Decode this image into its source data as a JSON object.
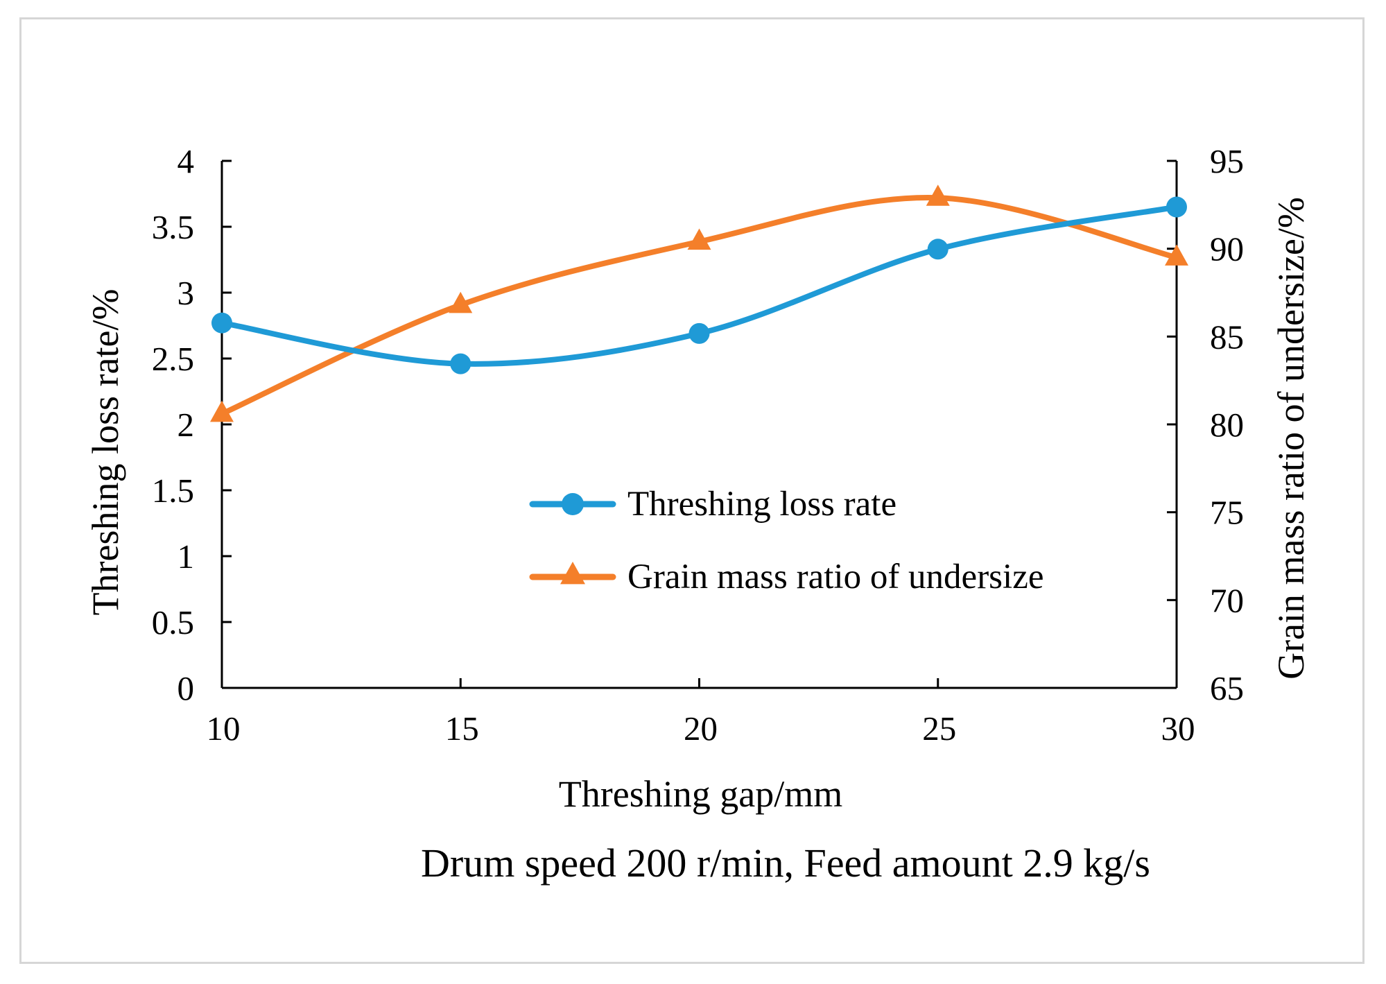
{
  "chart_data": {
    "type": "line",
    "x": [
      10,
      15,
      20,
      25,
      30
    ],
    "xticks": [
      "10",
      "15",
      "20",
      "25",
      "30"
    ],
    "xlim": [
      10,
      30
    ],
    "xlabel": "Threshing gap/mm",
    "ylabel_left": "Threshing loss rate/%",
    "ylabel_right": "Grain mass ratio of undersize/%",
    "ylim_left": [
      0,
      4
    ],
    "ylim_right": [
      65,
      95
    ],
    "yticks_left": [
      "0",
      "0.5",
      "1",
      "1.5",
      "2",
      "2.5",
      "3",
      "3.5",
      "4"
    ],
    "yticks_right": [
      "65",
      "70",
      "75",
      "80",
      "85",
      "90",
      "95"
    ],
    "series": [
      {
        "name": "Threshing loss rate",
        "axis": "left",
        "marker": "circle",
        "color": "#1f9ad6",
        "values": [
          2.77,
          2.46,
          2.69,
          3.33,
          3.65
        ]
      },
      {
        "name": "Grain mass ratio of undersize",
        "axis": "right",
        "marker": "triangle",
        "color": "#f47f2a",
        "values": [
          80.6,
          86.8,
          90.4,
          92.9,
          89.5
        ]
      }
    ],
    "legend_position": "center",
    "grid": false,
    "caption": "Drum speed 200 r/min, Feed amount 2.9 kg/s"
  }
}
